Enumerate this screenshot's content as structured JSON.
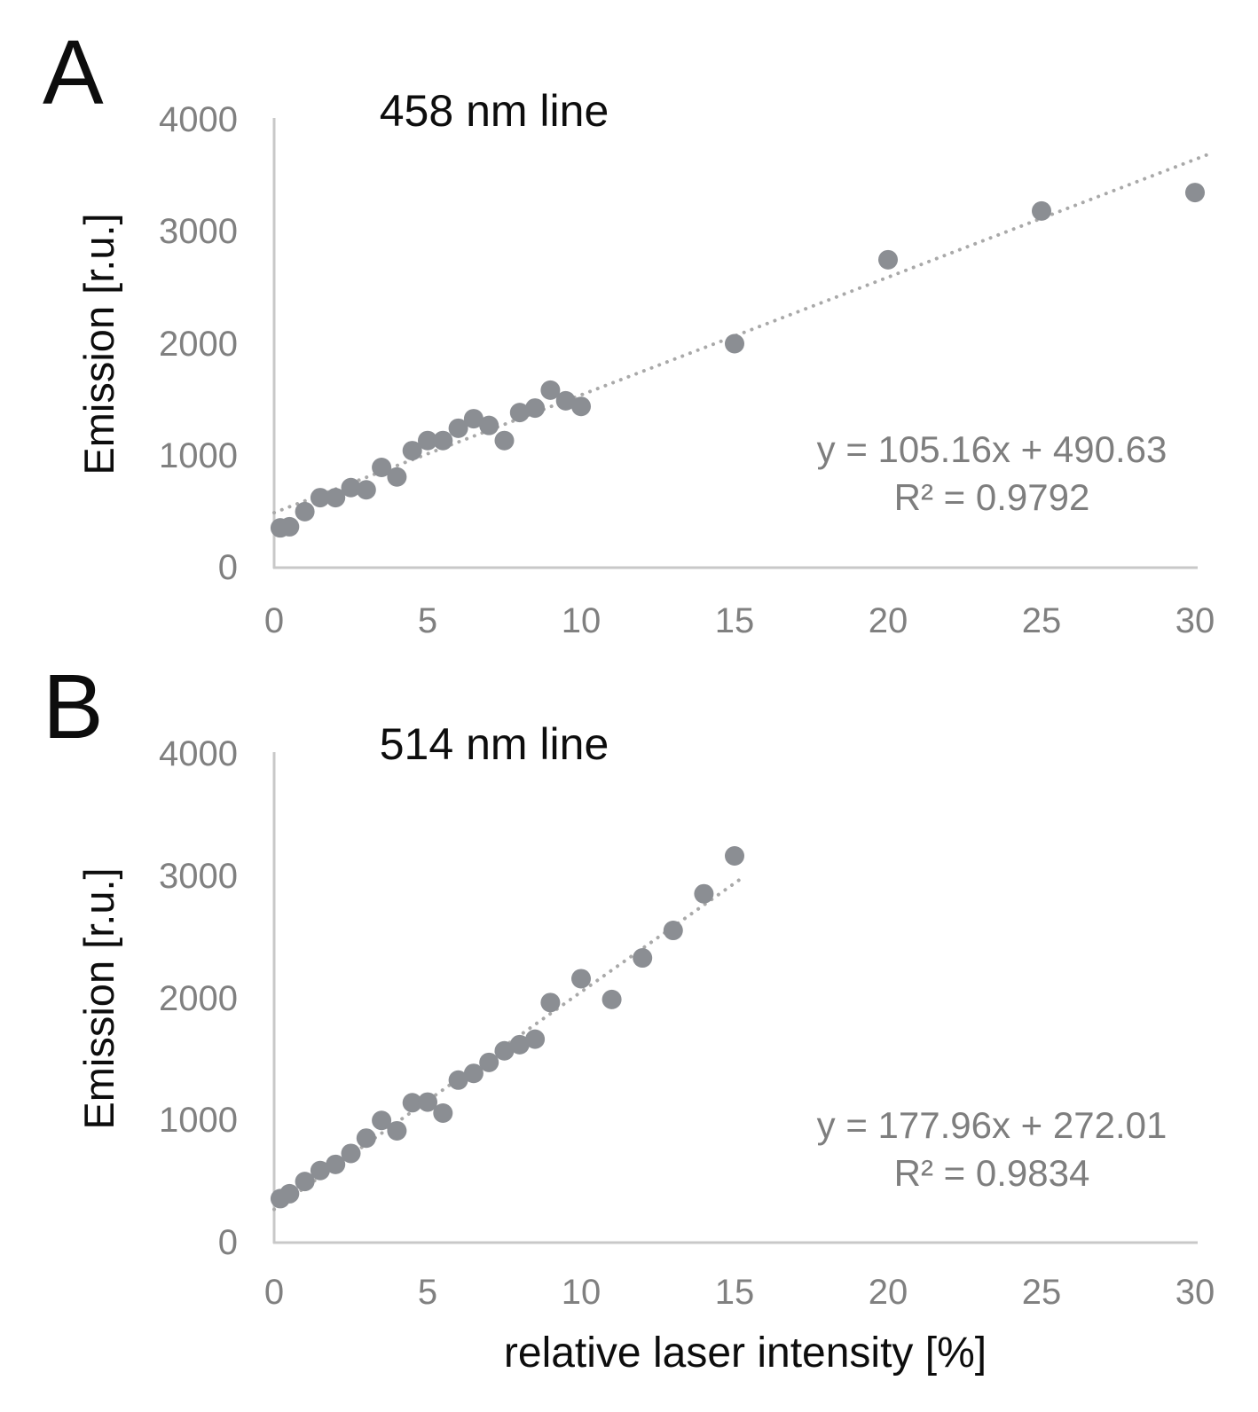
{
  "colors": {
    "point": "#8b8e93",
    "trendline": "#a9a9a9",
    "axis": "#c8c8c8",
    "tick_text": "#808080",
    "equation_text": "#7e7e7e",
    "title_text": "#0d0d0d"
  },
  "chart_data": [
    {
      "type": "scatter",
      "panel_label": "A",
      "title": "458 nm line",
      "xlabel": "",
      "ylabel": "Emission [r.u.]",
      "x_ticks": [
        0,
        5,
        10,
        15,
        20,
        25,
        30
      ],
      "y_ticks": [
        4000,
        3000,
        2000,
        1000,
        0
      ],
      "xlim": [
        0,
        30
      ],
      "ylim": [
        0,
        4000
      ],
      "points": [
        [
          0.2,
          355
        ],
        [
          0.5,
          365
        ],
        [
          1,
          500
        ],
        [
          1.5,
          625
        ],
        [
          2,
          625
        ],
        [
          2.5,
          715
        ],
        [
          3,
          695
        ],
        [
          3.5,
          895
        ],
        [
          4,
          810
        ],
        [
          4.5,
          1045
        ],
        [
          5,
          1135
        ],
        [
          5.5,
          1135
        ],
        [
          6,
          1245
        ],
        [
          6.5,
          1330
        ],
        [
          7,
          1270
        ],
        [
          7.5,
          1135
        ],
        [
          8,
          1385
        ],
        [
          8.5,
          1425
        ],
        [
          9,
          1585
        ],
        [
          9.5,
          1490
        ],
        [
          10,
          1440
        ],
        [
          15,
          2000
        ],
        [
          20,
          2750
        ],
        [
          25,
          3185
        ],
        [
          30,
          3350
        ]
      ],
      "trendline": {
        "slope": 105.16,
        "intercept": 490.63,
        "x_start": 0,
        "x_end": 30.45
      },
      "equation": "y = 105.16x + 490.63",
      "r_squared": "R² = 0.9792"
    },
    {
      "type": "scatter",
      "panel_label": "B",
      "title": "514 nm line",
      "xlabel": "relative laser intensity [%]",
      "ylabel": "Emission [r.u.]",
      "x_ticks": [
        0,
        5,
        10,
        15,
        20,
        25,
        30
      ],
      "y_ticks": [
        4000,
        3000,
        2000,
        1000,
        0
      ],
      "xlim": [
        0,
        30
      ],
      "ylim": [
        0,
        4000
      ],
      "points": [
        [
          0.2,
          360
        ],
        [
          0.5,
          400
        ],
        [
          1,
          500
        ],
        [
          1.5,
          590
        ],
        [
          2,
          640
        ],
        [
          2.5,
          730
        ],
        [
          3,
          855
        ],
        [
          3.5,
          1000
        ],
        [
          4,
          915
        ],
        [
          4.5,
          1145
        ],
        [
          5,
          1150
        ],
        [
          5.5,
          1060
        ],
        [
          6,
          1330
        ],
        [
          6.5,
          1385
        ],
        [
          7,
          1475
        ],
        [
          7.5,
          1570
        ],
        [
          8,
          1620
        ],
        [
          8.5,
          1665
        ],
        [
          9,
          1965
        ],
        [
          10,
          2160
        ],
        [
          11,
          1990
        ],
        [
          12,
          2330
        ],
        [
          13,
          2555
        ],
        [
          14,
          2855
        ],
        [
          15,
          3165
        ]
      ],
      "trendline": {
        "slope": 177.96,
        "intercept": 272.01,
        "x_start": 0,
        "x_end": 15.35
      },
      "equation": "y = 177.96x + 272.01",
      "r_squared": "R² = 0.9834"
    }
  ]
}
